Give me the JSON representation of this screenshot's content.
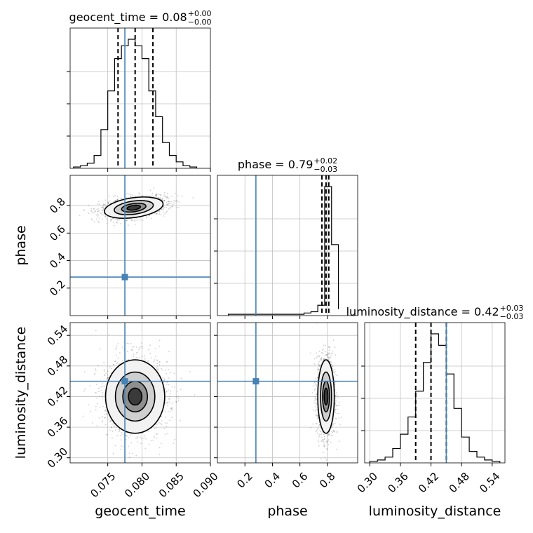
{
  "chart_data": {
    "type": "scatter",
    "kind": "corner",
    "parameters": [
      "geocent_time",
      "phase",
      "luminosity_distance"
    ],
    "truths": {
      "geocent_time": 0.0775,
      "phase": 0.28,
      "luminosity_distance": 0.45
    },
    "truth_color": "#4682b4",
    "grid": true,
    "titles": [
      {
        "param": "geocent_time",
        "prefix": "geocent_time = 0.08",
        "upper": "+0.00",
        "lower": "−0.00"
      },
      {
        "param": "phase",
        "prefix": "phase = 0.79",
        "upper": "+0.02",
        "lower": "−0.03"
      },
      {
        "param": "luminosity_distance",
        "prefix": "luminosity_distance = 0.42",
        "upper": "+0.03",
        "lower": "−0.03"
      }
    ],
    "xlabels": [
      "geocent_time",
      "phase",
      "luminosity_distance"
    ],
    "ylabels": [
      "",
      "phase",
      "luminosity_distance"
    ],
    "axes": {
      "geocent_time": {
        "range": [
          0.0695,
          0.09
        ],
        "ticks": [
          "0.075",
          "0.080",
          "0.085",
          "0.090"
        ]
      },
      "phase": {
        "range": [
          0.0,
          1.02
        ],
        "ticks": [
          "0.2",
          "0.4",
          "0.6",
          "0.8"
        ]
      },
      "luminosity_distance": {
        "range": [
          0.29,
          0.565
        ],
        "ticks": [
          "0.30",
          "0.36",
          "0.42",
          "0.48",
          "0.54"
        ]
      }
    },
    "histograms": {
      "geocent_time": {
        "edges": [
          0.07,
          0.071,
          0.072,
          0.073,
          0.074,
          0.075,
          0.076,
          0.077,
          0.078,
          0.079,
          0.08,
          0.081,
          0.082,
          0.083,
          0.084,
          0.085,
          0.086,
          0.087,
          0.088
        ],
        "counts": [
          1,
          2,
          4,
          10,
          30,
          60,
          85,
          95,
          100,
          95,
          85,
          60,
          40,
          20,
          10,
          5,
          2,
          1
        ],
        "quantiles": [
          0.0765,
          0.079,
          0.0816
        ]
      },
      "phase": {
        "edges": [
          0.08,
          0.13,
          0.18,
          0.23,
          0.28,
          0.33,
          0.38,
          0.43,
          0.48,
          0.53,
          0.58,
          0.63,
          0.68,
          0.73,
          0.78,
          0.83,
          0.88
        ],
        "counts": [
          1,
          1,
          1,
          1,
          1,
          1,
          1,
          1,
          1,
          1,
          1,
          2,
          3,
          8,
          100,
          55,
          5
        ],
        "quantiles": [
          0.76,
          0.79,
          0.81
        ]
      },
      "luminosity_distance": {
        "edges": [
          0.3,
          0.315,
          0.33,
          0.345,
          0.36,
          0.375,
          0.39,
          0.405,
          0.42,
          0.435,
          0.45,
          0.465,
          0.48,
          0.495,
          0.51,
          0.525,
          0.54,
          0.555
        ],
        "counts": [
          1,
          2,
          4,
          10,
          20,
          32,
          50,
          70,
          90,
          82,
          62,
          38,
          18,
          8,
          4,
          2,
          1
        ],
        "quantiles": [
          0.39,
          0.42,
          0.45
        ]
      }
    },
    "pairs": [
      {
        "x": "geocent_time",
        "y": "phase",
        "center": [
          0.0788,
          0.785
        ],
        "sigma": [
          0.0018,
          0.03
        ],
        "corr": 0.4
      },
      {
        "x": "geocent_time",
        "y": "luminosity_distance",
        "center": [
          0.079,
          0.42
        ],
        "sigma": [
          0.0018,
          0.03
        ],
        "corr": 0.0
      },
      {
        "x": "phase",
        "y": "luminosity_distance",
        "center": [
          0.79,
          0.42
        ],
        "sigma": [
          0.025,
          0.03
        ],
        "corr": 0.0
      }
    ]
  }
}
